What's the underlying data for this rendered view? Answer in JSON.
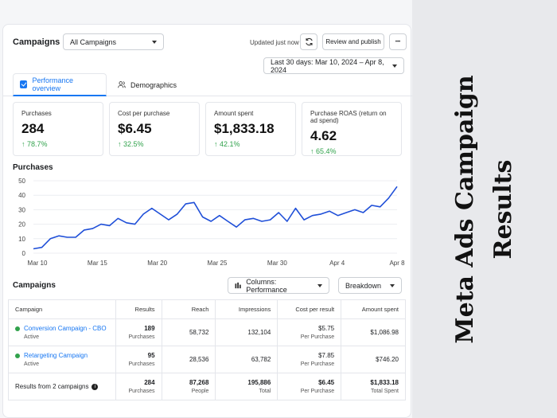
{
  "header": {
    "title": "Campaigns",
    "campaign_select": "All Campaigns",
    "updated": "Updated just now",
    "review_label": "Review and publish",
    "more_label": "•••",
    "date_range": "Last 30 days: Mar 10, 2024 – Apr 8, 2024"
  },
  "tabs": [
    {
      "label": "Performance overview"
    },
    {
      "label": "Demographics"
    }
  ],
  "metrics": [
    {
      "label": "Purchases",
      "value": "284",
      "delta": "↑ 78.7%"
    },
    {
      "label": "Cost per purchase",
      "value": "$6.45",
      "delta": "↑ 32.5%"
    },
    {
      "label": "Amount spent",
      "value": "$1,833.18",
      "delta": "↑ 42.1%"
    },
    {
      "label": "Purchase ROAS (return on ad spend)",
      "value": "4.62",
      "delta": "↑ 65.4%"
    }
  ],
  "chart_data": {
    "type": "line",
    "title": "Purchases",
    "x_ticks": [
      "Mar 10",
      "Mar 15",
      "Mar 20",
      "Mar 25",
      "Mar 30",
      "Apr 4",
      "Apr 8"
    ],
    "y_ticks": [
      0,
      10,
      20,
      30,
      40,
      50
    ],
    "ylim": [
      0,
      50
    ],
    "values": [
      3,
      4,
      10,
      12,
      11,
      11,
      16,
      17,
      20,
      19,
      24,
      21,
      20,
      27,
      31,
      27,
      23,
      27,
      34,
      35,
      25,
      22,
      26,
      22,
      18,
      23,
      24,
      22,
      23,
      28,
      22,
      31,
      23,
      26,
      27,
      29,
      26,
      28,
      30,
      28,
      33,
      32,
      38,
      46
    ],
    "color": "#1f4fd8",
    "grid": true
  },
  "campaigns_section": {
    "title": "Campaigns",
    "columns_label": "Columns: Performance",
    "breakdown_label": "Breakdown"
  },
  "table": {
    "headers": [
      "Campaign",
      "Results",
      "Reach",
      "Impressions",
      "Cost per result",
      "Amount spent"
    ],
    "rows": [
      {
        "name": "Conversion Campaign - CBO",
        "status": "Active",
        "results": "189",
        "results_sub": "Purchases",
        "reach": "58,732",
        "impressions": "132,104",
        "cost": "$5.75",
        "cost_sub": "Per Purchase",
        "spent": "$1,086.98"
      },
      {
        "name": "Retargeting Campaign",
        "status": "Active",
        "results": "95",
        "results_sub": "Purchases",
        "reach": "28,536",
        "impressions": "63,782",
        "cost": "$7.85",
        "cost_sub": "Per Purchase",
        "spent": "$746.20"
      }
    ],
    "total": {
      "name": "Results from 2 campaigns",
      "results": "284",
      "results_sub": "Purchases",
      "reach": "87,268",
      "reach_sub": "People",
      "impressions": "195,886",
      "impressions_sub": "Total",
      "cost": "$6.45",
      "cost_sub": "Per Purchase",
      "spent": "$1,833.18",
      "spent_sub": "Total Spent"
    }
  },
  "side_title": "Meta Ads Campaign Results"
}
